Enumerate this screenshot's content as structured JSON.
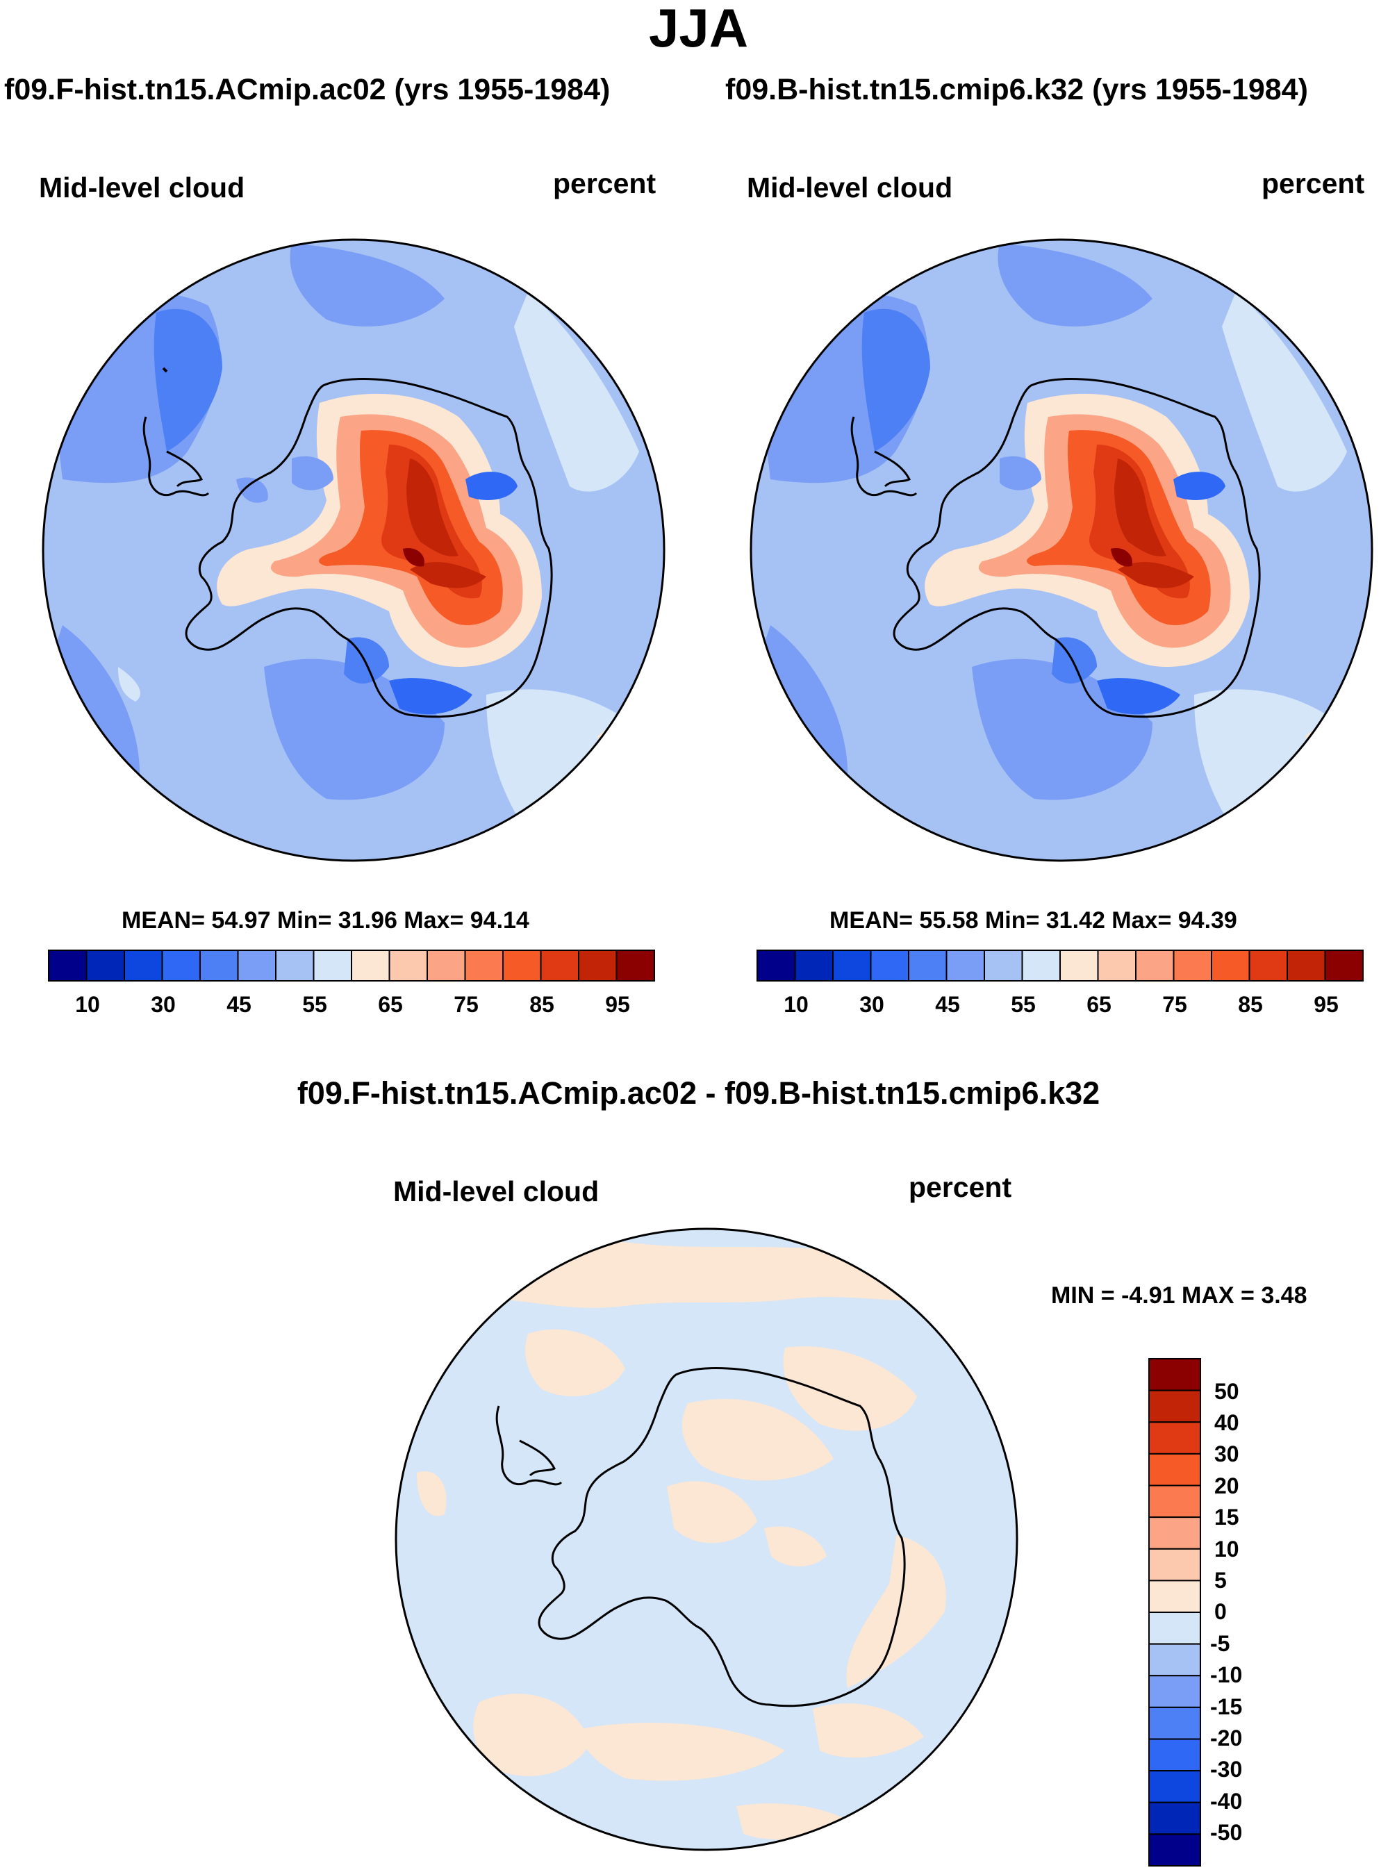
{
  "season": "JJA",
  "palette": {
    "main": [
      "#00008b",
      "#0026b8",
      "#0d47e0",
      "#2e68f5",
      "#4d7ff5",
      "#7a9ef5",
      "#a6c2f5",
      "#d4e6f8",
      "#fce6d4",
      "#fcc8ae",
      "#fca586",
      "#fc7a4f",
      "#f55a27",
      "#e03a14",
      "#c22407",
      "#8b0000"
    ],
    "diff": [
      "#00008b",
      "#0026b8",
      "#0d47e0",
      "#2e68f5",
      "#4d7ff5",
      "#7a9ef5",
      "#a6c2f5",
      "#d4e6f8",
      "#fce6d4",
      "#fcc8ae",
      "#fca586",
      "#fc7a4f",
      "#f55a27",
      "#e03a14",
      "#c22407",
      "#8b0000"
    ]
  },
  "left_panel": {
    "case_title": "f09.F-hist.tn15.ACmip.ac02 (yrs 1955-1984)",
    "variable": "Mid-level cloud",
    "units": "percent",
    "stats": "MEAN=  54.97  Min=  31.96  Max=  94.14",
    "colorbar_ticks": [
      "10",
      "30",
      "45",
      "55",
      "65",
      "75",
      "85",
      "95"
    ]
  },
  "right_panel": {
    "case_title": "f09.B-hist.tn15.cmip6.k32 (yrs 1955-1984)",
    "variable": "Mid-level cloud",
    "units": "percent",
    "stats": "MEAN=  55.58  Min=  31.42  Max=  94.39",
    "colorbar_ticks": [
      "10",
      "30",
      "45",
      "55",
      "65",
      "75",
      "85",
      "95"
    ]
  },
  "diff_panel": {
    "title": "f09.F-hist.tn15.ACmip.ac02 - f09.B-hist.tn15.cmip6.k32",
    "variable": "Mid-level cloud",
    "units": "percent",
    "minmax": "MIN =  -4.91 MAX =   3.48",
    "colorbar_ticks": [
      "50",
      "40",
      "30",
      "20",
      "15",
      "10",
      "5",
      "0",
      "-5",
      "-10",
      "-15",
      "-20",
      "-30",
      "-40",
      "-50"
    ]
  }
}
